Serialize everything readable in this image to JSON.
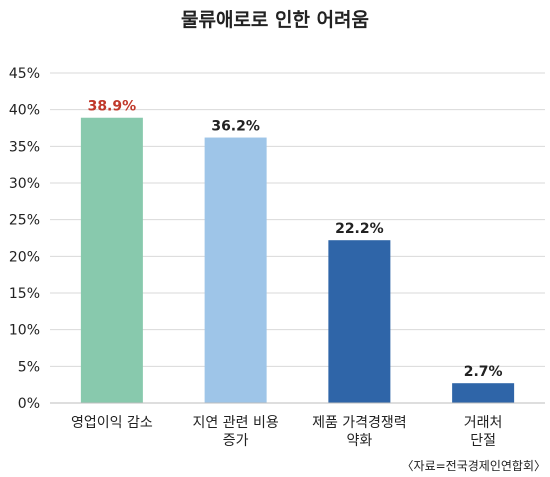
{
  "chart_data": {
    "type": "bar",
    "title": "물류애로로 인한 어려움",
    "categories": [
      [
        "영업이익 감소"
      ],
      [
        "지연 관련 비용",
        "증가"
      ],
      [
        "제품 가격경쟁력",
        "약화"
      ],
      [
        "거래처",
        "단절"
      ]
    ],
    "values": [
      38.9,
      36.2,
      22.2,
      2.7
    ],
    "data_labels": [
      "38.9%",
      "36.2%",
      "22.2%",
      "2.7%"
    ],
    "bar_colors": [
      "#88c9ad",
      "#9ec5e8",
      "#2f65a8",
      "#2f65a8"
    ],
    "label_colors": [
      "#c0392b",
      "#222222",
      "#222222",
      "#222222"
    ],
    "ylim": [
      0,
      45
    ],
    "yticks": [
      0,
      5,
      10,
      15,
      20,
      25,
      30,
      35,
      40,
      45
    ],
    "ytick_labels": [
      "0%",
      "5%",
      "10%",
      "15%",
      "20%",
      "25%",
      "30%",
      "35%",
      "40%",
      "45%"
    ],
    "grid": true,
    "xlabel": "",
    "ylabel": "",
    "source": "〈자료=전국경제인연합회〉"
  }
}
